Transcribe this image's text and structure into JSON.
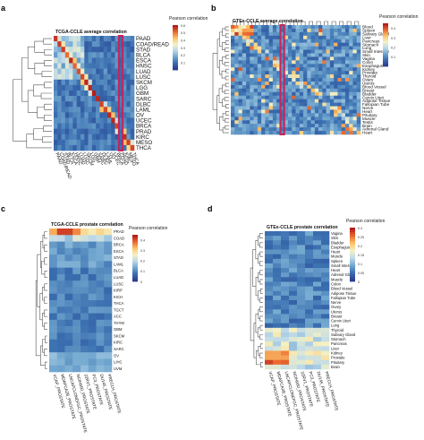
{
  "chart_data": [
    {
      "type": "heatmap",
      "panel_label": "a",
      "title": "TCGA-CCLE average correlation",
      "legend_title": "Pearson correlation",
      "legend_ticks": [
        0.6,
        0.5,
        0.4,
        0.3,
        0.2,
        0.1
      ],
      "value_range": [
        0,
        0.6
      ],
      "rows": [
        "PAAD",
        "COAD/READ",
        "STAD",
        "BLCA",
        "ESCA",
        "HNSC",
        "LUAD",
        "LUSC",
        "SKCM",
        "LGG",
        "GBM",
        "SARC",
        "DLBC",
        "LAML",
        "OV",
        "UCEC",
        "BRCA",
        "PRAD",
        "KIRC",
        "MESO",
        "THCA"
      ],
      "columns": [
        "PAAD",
        "COAD/READ",
        "STAD",
        "BLCA",
        "ESCA",
        "HNSC",
        "LUAD",
        "LUSC",
        "SKCM",
        "LGG",
        "GBM",
        "SARC",
        "DLBC",
        "LAML",
        "OV",
        "UCEC",
        "BRCA",
        "PRAD",
        "KIRC",
        "MESO",
        "THCA"
      ],
      "colorscale": [
        "#2c3e8f",
        "#3a6fb0",
        "#72a7cf",
        "#bcd9ea",
        "#f4f1c4",
        "#fcc56a",
        "#ec6a30",
        "#b31d1d"
      ],
      "highlight_column": 17,
      "highlight_color": "#c8235a"
    },
    {
      "type": "heatmap",
      "panel_label": "b",
      "title": "GTEx-CCLE average correlation",
      "legend_title": "Pearson correlation",
      "legend_ticks": [
        0.4,
        0.3,
        0.2,
        0.1
      ],
      "value_range": [
        0,
        0.45
      ],
      "rows": [
        "Blood",
        "Spleen",
        "Salivary Gland",
        "Liver",
        "Pancreas",
        "Stomach",
        "Lung",
        "Small Intestine",
        "Skin",
        "Vagina",
        "Colon",
        "Esophagus",
        "Kidney",
        "Prostate",
        "Thyroid",
        "Ovary",
        "Uterus",
        "Blood Vessel",
        "Breast",
        "Bladder",
        "Cervix Uteri",
        "Adipose Tissue",
        "Fallopian Tube",
        "Nerve",
        "Heart",
        "Pituitary",
        "Muscle",
        "Testis",
        "Brain",
        "Adrenal Gland",
        "Heart"
      ],
      "columns": [
        "",
        "",
        "",
        "",
        "",
        "",
        "",
        "",
        "",
        "",
        "",
        "",
        "",
        "",
        "",
        "",
        "",
        "",
        "",
        "",
        "",
        "",
        "",
        "",
        "",
        "",
        "",
        "",
        "",
        "",
        "",
        "",
        "",
        ""
      ],
      "colorscale": [
        "#2c3e8f",
        "#3a6fb0",
        "#72a7cf",
        "#bcd9ea",
        "#f4f1c4",
        "#fcc56a",
        "#ec6a30",
        "#b31d1d"
      ],
      "highlight_column": 13,
      "highlight_color": "#c8235a"
    },
    {
      "type": "heatmap",
      "panel_label": "c",
      "title": "TCGA-CCLE prostate correlation",
      "legend_title": "Pearson correlation",
      "legend_ticks": [
        0.4,
        0.3,
        0.2,
        0.1,
        0
      ],
      "value_range": [
        0,
        0.45
      ],
      "rows": [
        "PRAD",
        "COAD",
        "BRCA",
        "ESCA",
        "STAD",
        "LAML",
        "BLCA",
        "LUAD",
        "LUSC",
        "KIRP",
        "KICH",
        "THCA",
        "TGCT",
        "ACC",
        "THYM",
        "GBM",
        "SKCM",
        "KIRC",
        "SARC",
        "OV",
        "LIHC",
        "UVM"
      ],
      "columns": [
        "VCAP_PROSTATE",
        "MDAPCA2B_PROSTATE",
        "LNCAPCLONEFGC_PROSTATE",
        "NCIH660_PROSTATE",
        "22RV1_PROSTATE",
        "PC3_PROSTATE",
        "DU145_PROSTATE",
        "PRECLH_PROSTATE"
      ],
      "colorscale": [
        "#2c3e8f",
        "#3a6fb0",
        "#72a7cf",
        "#bcd9ea",
        "#f4f1c4",
        "#fcc56a",
        "#ec6a30",
        "#b31d1d"
      ]
    },
    {
      "type": "heatmap",
      "panel_label": "d",
      "title": "GTEx-CCLE prostate correlation",
      "legend_title": "Pearson correlation",
      "legend_ticks": [
        0.3,
        0.25,
        0.2,
        0.15,
        0.1,
        0.05,
        0
      ],
      "value_range": [
        0,
        0.3
      ],
      "rows": [
        "Vagina",
        "Skin",
        "Bladder",
        "Esophagus",
        "Heart",
        "Muscle",
        "Spleen",
        "Small Intestine",
        "Heart",
        "Adrenal Gland",
        "Muscle",
        "Colon",
        "Blood Vessel",
        "Adipose Tissue",
        "Fallopian Tube",
        "Nerve",
        "Ovary",
        "Uterus",
        "Breast",
        "Cervix Uteri",
        "Lung",
        "Thyroid",
        "Salivary Gland",
        "Stomach",
        "Pancreas",
        "Liver",
        "Kidney",
        "Prostate",
        "Pituitary",
        "Brain"
      ],
      "columns": [
        "VCAP_PROSTATE",
        "MDAPCA2B_PROSTATE",
        "LNCAPCLONEFGC_PROSTATE",
        "NCIH660_PROSTATE",
        "22RV1_PROSTATE",
        "PC3_PROSTATE",
        "DU145_PROSTATE",
        "PRECLH_PROSTATE"
      ],
      "colorscale": [
        "#2c3e8f",
        "#3a6fb0",
        "#72a7cf",
        "#bcd9ea",
        "#f4f1c4",
        "#fcc56a",
        "#ec6a30",
        "#b31d1d"
      ]
    }
  ]
}
